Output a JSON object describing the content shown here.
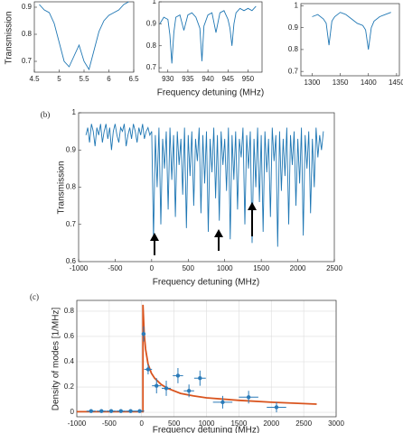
{
  "chart_data": [
    {
      "type": "line",
      "ylabel": "Transmission",
      "color": "#1f77b4",
      "grid": false,
      "x": [
        4.6,
        4.7,
        4.8,
        4.9,
        5.0,
        5.1,
        5.2,
        5.3,
        5.4,
        5.5,
        5.6,
        5.7,
        5.8,
        5.9,
        6.0,
        6.1,
        6.2,
        6.3,
        6.4
      ],
      "values": [
        0.91,
        0.89,
        0.88,
        0.84,
        0.77,
        0.7,
        0.68,
        0.72,
        0.76,
        0.7,
        0.67,
        0.74,
        0.81,
        0.85,
        0.87,
        0.88,
        0.89,
        0.91,
        0.92
      ],
      "xlim": [
        4.5,
        6.5
      ],
      "ylim": [
        0.66,
        0.92
      ],
      "xticks": [
        4.5,
        5,
        5.5,
        6,
        6.5
      ],
      "yticks": [
        0.7,
        0.8,
        0.9
      ]
    },
    {
      "type": "line",
      "xlabel": "Frequency detuning (MHz)",
      "color": "#1f77b4",
      "grid": false,
      "x": [
        928,
        929,
        930,
        930.5,
        931,
        931.5,
        932,
        933,
        934,
        935,
        936,
        937,
        938,
        938.5,
        939,
        940,
        941,
        942,
        943,
        944,
        945,
        945.5,
        946,
        946.5,
        947,
        948,
        949,
        950,
        951,
        952
      ],
      "values": [
        0.9,
        0.93,
        0.92,
        0.85,
        0.72,
        0.86,
        0.93,
        0.94,
        0.87,
        0.94,
        0.95,
        0.93,
        0.88,
        0.73,
        0.89,
        0.94,
        0.95,
        0.86,
        0.95,
        0.96,
        0.92,
        0.88,
        0.8,
        0.9,
        0.95,
        0.97,
        0.96,
        0.97,
        0.96,
        0.98
      ],
      "xlim": [
        927.8,
        953.5
      ],
      "ylim": [
        0.68,
        1.0
      ],
      "xticks": [
        930,
        935,
        940,
        945,
        950
      ],
      "yticks": [
        0.7,
        0.8,
        0.9,
        1
      ]
    },
    {
      "type": "line",
      "color": "#1f77b4",
      "grid": false,
      "x": [
        1300,
        1310,
        1320,
        1325,
        1330,
        1335,
        1340,
        1350,
        1360,
        1370,
        1380,
        1390,
        1395,
        1400,
        1405,
        1410,
        1420,
        1430,
        1440
      ],
      "values": [
        0.95,
        0.96,
        0.94,
        0.92,
        0.82,
        0.93,
        0.95,
        0.97,
        0.96,
        0.94,
        0.92,
        0.91,
        0.89,
        0.8,
        0.9,
        0.93,
        0.95,
        0.96,
        0.97
      ],
      "xlim": [
        1280,
        1455
      ],
      "ylim": [
        0.68,
        1.01
      ],
      "xticks": [
        1300,
        1350,
        1400,
        1450
      ],
      "yticks": [
        0.7,
        0.8,
        0.9,
        1
      ]
    },
    {
      "type": "line",
      "label": "(b)",
      "xlabel": "Frequency detuning (MHz)",
      "ylabel": "Transmission",
      "color": "#1f77b4",
      "grid": false,
      "x": [
        -900,
        -875,
        -850,
        -825,
        -800,
        -775,
        -750,
        -725,
        -700,
        -675,
        -650,
        -625,
        -600,
        -575,
        -550,
        -525,
        -500,
        -475,
        -450,
        -425,
        -400,
        -375,
        -350,
        -325,
        -300,
        -275,
        -250,
        -225,
        -200,
        -175,
        -150,
        -125,
        -100,
        -75,
        -50,
        -25,
        0,
        25,
        50,
        75,
        100,
        125,
        150,
        175,
        200,
        225,
        250,
        275,
        300,
        325,
        350,
        375,
        400,
        425,
        450,
        475,
        500,
        525,
        550,
        575,
        600,
        625,
        650,
        675,
        700,
        725,
        750,
        775,
        800,
        825,
        850,
        875,
        900,
        925,
        950,
        975,
        1000,
        1025,
        1050,
        1075,
        1100,
        1125,
        1150,
        1175,
        1200,
        1225,
        1250,
        1275,
        1300,
        1325,
        1350,
        1375,
        1400,
        1425,
        1450,
        1475,
        1500,
        1525,
        1550,
        1575,
        1600,
        1625,
        1650,
        1675,
        1700,
        1725,
        1750,
        1775,
        1800,
        1825,
        1850,
        1875,
        1900,
        1925,
        1950,
        1975,
        2000,
        2025,
        2050,
        2075,
        2100,
        2125,
        2150,
        2175,
        2200,
        2225,
        2250,
        2275,
        2300,
        2325,
        2350
      ],
      "values": [
        0.94,
        0.96,
        0.92,
        0.97,
        0.95,
        0.91,
        0.96,
        0.94,
        0.97,
        0.92,
        0.95,
        0.97,
        0.93,
        0.96,
        0.9,
        0.95,
        0.97,
        0.94,
        0.92,
        0.96,
        0.95,
        0.97,
        0.91,
        0.94,
        0.96,
        0.93,
        0.97,
        0.95,
        0.92,
        0.96,
        0.94,
        0.97,
        0.93,
        0.95,
        0.96,
        0.94,
        0.95,
        0.66,
        0.94,
        0.8,
        0.96,
        0.7,
        0.93,
        0.85,
        0.95,
        0.74,
        0.96,
        0.82,
        0.94,
        0.72,
        0.95,
        0.86,
        0.93,
        0.78,
        0.96,
        0.69,
        0.94,
        0.83,
        0.95,
        0.75,
        0.93,
        0.87,
        0.96,
        0.73,
        0.94,
        0.81,
        0.95,
        0.68,
        0.93,
        0.84,
        0.96,
        0.77,
        0.94,
        0.71,
        0.95,
        0.86,
        0.93,
        0.79,
        0.96,
        0.66,
        0.94,
        0.82,
        0.95,
        0.74,
        0.93,
        0.88,
        0.96,
        0.7,
        0.94,
        0.85,
        0.95,
        0.65,
        0.93,
        0.8,
        0.96,
        0.76,
        0.94,
        0.68,
        0.95,
        0.84,
        0.93,
        0.72,
        0.96,
        0.87,
        0.94,
        0.64,
        0.95,
        0.79,
        0.93,
        0.83,
        0.96,
        0.7,
        0.94,
        0.86,
        0.95,
        0.75,
        0.93,
        0.81,
        0.96,
        0.67,
        0.94,
        0.85,
        0.95,
        0.73,
        0.93,
        0.8,
        0.96,
        0.88,
        0.94,
        0.9,
        0.95
      ],
      "xlim": [
        -1000,
        2500
      ],
      "ylim": [
        0.6,
        1
      ],
      "xticks": [
        -1000,
        -500,
        0,
        500,
        1000,
        1500,
        2000,
        2500
      ],
      "yticks": [
        0.6,
        0.7,
        0.8,
        0.9,
        1
      ]
    },
    {
      "type": "errorbar",
      "label": "(c)",
      "xlabel": "Frequency detuning (MHz)",
      "ylabel": "Density of modes [1/MHz]",
      "grid": true,
      "points": {
        "color": "#2a7ab8",
        "x": [
          -780,
          -620,
          -470,
          -320,
          -170,
          -30,
          30,
          100,
          230,
          380,
          560,
          730,
          900,
          1250,
          1650,
          2080
        ],
        "values": [
          0.01,
          0.01,
          0.01,
          0.01,
          0.01,
          0.01,
          0.62,
          0.34,
          0.21,
          0.19,
          0.29,
          0.17,
          0.27,
          0.08,
          0.12,
          0.04
        ],
        "yerr": [
          0.01,
          0.01,
          0.01,
          0.01,
          0.01,
          0.01,
          0.06,
          0.04,
          0.06,
          0.06,
          0.06,
          0.05,
          0.06,
          0.05,
          0.05,
          0.04
        ],
        "xerr": [
          70,
          70,
          70,
          70,
          70,
          70,
          30,
          60,
          70,
          70,
          80,
          80,
          90,
          150,
          150,
          150
        ]
      },
      "fit": {
        "color": "#d9541e",
        "x": [
          -1000,
          20,
          20,
          40,
          60,
          100,
          150,
          200,
          300,
          400,
          600,
          800,
          1000,
          1500,
          2000,
          2700
        ],
        "values": [
          0.005,
          0.005,
          0.85,
          0.62,
          0.5,
          0.38,
          0.31,
          0.27,
          0.22,
          0.19,
          0.15,
          0.13,
          0.115,
          0.095,
          0.08,
          0.065
        ]
      },
      "xlim": [
        -1000,
        3000
      ],
      "ylim": [
        -0.035,
        0.885
      ],
      "xticks": [
        -1000,
        -500,
        0,
        500,
        1000,
        1500,
        2000,
        2500,
        3000
      ],
      "yticks": [
        0,
        0.2,
        0.4,
        0.6,
        0.8
      ]
    }
  ]
}
